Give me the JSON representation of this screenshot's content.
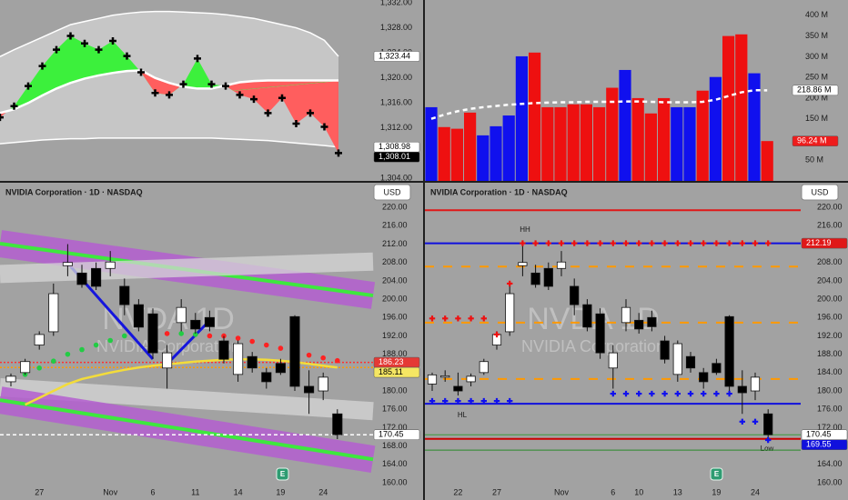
{
  "chart_data": [
    {
      "type": "oscillator",
      "values": [
        1313.7,
        1315.5,
        1318.7,
        1321.9,
        1324.5,
        1326.7,
        1325.5,
        1324.5,
        1325.9,
        1323.5,
        1320.9,
        1317.6,
        1317.3,
        1319,
        1323.1,
        1319,
        1318.7,
        1317.3,
        1316.6,
        1314.4,
        1316.8,
        1312.7,
        1314.4,
        1312.2,
        1308.01
      ],
      "basis": [
        1314.4,
        1315,
        1316,
        1317.2,
        1318.3,
        1319.2,
        1319.9,
        1320.4,
        1320.8,
        1321.1,
        1321.2,
        1320,
        1319.2,
        1318.6,
        1318.3,
        1318.3,
        1318.8,
        1319.3,
        1319.5,
        1319.6,
        1319.6,
        1319.6,
        1319.6,
        1319.6,
        1319.6
      ],
      "upper": [
        1323.4,
        1324.5,
        1325.5,
        1326.5,
        1327.5,
        1328.5,
        1329,
        1329.5,
        1330,
        1330.3,
        1330.5,
        1330.6,
        1330.6,
        1330.5,
        1330.4,
        1330.3,
        1330.1,
        1329.8,
        1329.5,
        1329,
        1328.5,
        1328,
        1327.2,
        1326,
        1323.44
      ],
      "lower": [
        1309.5,
        1309.7,
        1309.9,
        1310.1,
        1310.2,
        1310.3,
        1310.3,
        1310.4,
        1310.4,
        1310.4,
        1310.4,
        1310.4,
        1310.4,
        1310.4,
        1310.4,
        1310.4,
        1310.3,
        1310.2,
        1310.1,
        1310,
        1309.8,
        1309.6,
        1309.4,
        1309.2,
        1308.98
      ],
      "band_color": "#c6c6c6",
      "line_color": "#ffffff",
      "up_color": "#3cf03c",
      "down_color": "#ff5e5e",
      "marker_color": "#000000",
      "ylim": [
        1303.57,
        1332.43
      ],
      "yticks": [
        {
          "value": 1304,
          "label": "1,304.00"
        },
        {
          "value": 1308,
          "label": "1,308.00"
        },
        {
          "value": 1312,
          "label": "1,312.00"
        },
        {
          "value": 1316,
          "label": "1,316.00"
        },
        {
          "value": 1320,
          "label": "1,320.00"
        },
        {
          "value": 1324,
          "label": "1,324.00"
        },
        {
          "value": 1328,
          "label": "1,328.00"
        },
        {
          "value": 1332,
          "label": "1,332.00"
        }
      ],
      "price_labels": [
        {
          "value": 1323.44,
          "label": "1,323.44",
          "color": "#ffffff",
          "text_color": "#000000"
        },
        {
          "value": 1308.98,
          "label": "1,308.98",
          "color": "#ffffff",
          "text_color": "#000000"
        },
        {
          "value": 1308.01,
          "label": "1,308.01",
          "color": "#000000",
          "text_color": "#ffffff"
        }
      ]
    },
    {
      "type": "bar",
      "values": [
        178,
        130,
        126,
        165,
        110,
        132,
        158,
        301,
        310,
        178,
        178,
        185,
        185,
        178,
        225,
        268,
        200,
        163,
        200,
        178,
        178,
        218,
        251,
        350,
        354,
        260,
        96.24
      ],
      "colors": [
        "#1010ee",
        "#ee1010",
        "#ee1010",
        "#ee1010",
        "#1010ee",
        "#1010ee",
        "#1010ee",
        "#1010ee",
        "#ee1010",
        "#ee1010",
        "#ee1010",
        "#ee1010",
        "#ee1010",
        "#ee1010",
        "#ee1010",
        "#1010ee",
        "#ee1010",
        "#ee1010",
        "#ee1010",
        "#1010ee",
        "#1010ee",
        "#ee1010",
        "#1010ee",
        "#ee1010",
        "#ee1010",
        "#1010ee",
        "#ee1010"
      ],
      "series": [
        {
          "color": "#ffffff",
          "dash": true,
          "values": [
            150,
            160,
            168,
            174,
            178,
            181,
            184,
            186,
            188,
            189,
            190,
            190,
            191,
            191,
            191,
            192,
            192,
            191,
            190,
            190,
            190,
            191,
            196,
            205,
            214,
            219,
            218.86
          ]
        }
      ],
      "ylim": [
        0,
        437
      ],
      "yticks": [
        {
          "value": 50,
          "label": "50 M"
        },
        {
          "value": 100,
          "label": "100 M"
        },
        {
          "value": 150,
          "label": "150 M"
        },
        {
          "value": 200,
          "label": "200 M"
        },
        {
          "value": 250,
          "label": "250 M"
        },
        {
          "value": 300,
          "label": "300 M"
        },
        {
          "value": 350,
          "label": "350 M"
        },
        {
          "value": 400,
          "label": "400 M"
        }
      ],
      "price_labels": [
        {
          "value": 218.86,
          "label": "218.86 M",
          "color": "#ffffff",
          "text_color": "#000000"
        },
        {
          "value": 96.24,
          "label": "96.24 M",
          "color": "#ee1c1c",
          "text_color": "#ffffff"
        }
      ]
    },
    {
      "type": "candlestick",
      "title": "NVIDIA Corporation · 1D · NASDAQ",
      "currency": "USD",
      "watermark": "NVDA 1D",
      "watermark_sub": "NVIDIA Corporation",
      "earnings": "E",
      "categories": [
        null,
        null,
        "27",
        null,
        null,
        null,
        null,
        "Nov",
        null,
        null,
        "6",
        null,
        null,
        "11",
        null,
        null,
        "14",
        null,
        null,
        "19",
        null,
        null,
        "24",
        null
      ],
      "open": [
        182,
        184,
        190,
        192.9,
        207.3,
        205.7,
        206.7,
        206.7,
        202.8,
        198.8,
        196.8,
        185,
        194.9,
        195.4,
        196,
        190.9,
        183.6,
        187.5,
        184,
        186,
        196.2,
        181,
        180,
        175
      ],
      "high": [
        183.8,
        187,
        193,
        203.4,
        212,
        207.5,
        208,
        210.5,
        204.5,
        200,
        198,
        190,
        200,
        197,
        197.5,
        192,
        191,
        188.5,
        185,
        187,
        196.5,
        184.5,
        184,
        176
      ],
      "low": [
        181,
        183.5,
        189,
        192,
        205,
        202.5,
        202,
        205,
        196.5,
        193,
        187,
        180.5,
        193,
        192.5,
        193,
        186,
        182,
        184,
        180.5,
        183.5,
        180,
        175,
        178,
        169.5
      ],
      "close": [
        183.2,
        186.4,
        192.3,
        201.2,
        208,
        203.2,
        202.8,
        208.1,
        198.8,
        193.9,
        188.3,
        188.3,
        198.2,
        193.5,
        194,
        186.9,
        190.3,
        185,
        182,
        184,
        181,
        179.6,
        183,
        170.45
      ],
      "up_color": "#ffffff",
      "down_color": "#000000",
      "channels": [
        {
          "color": "#b45ed0",
          "width": 30,
          "opacity": 0.85,
          "values": [
            212.1,
            200.8
          ]
        },
        {
          "color": "#3ee83e",
          "width": 4,
          "opacity": 1,
          "values": [
            212.1,
            200.8
          ]
        },
        {
          "color": "#d6d6d6",
          "width": 20,
          "opacity": 0.75,
          "values": [
            205.5,
            208.2
          ]
        },
        {
          "color": "#d6d6d6",
          "width": 20,
          "opacity": 0.75,
          "values": [
            180.8,
            175.6
          ]
        },
        {
          "color": "#b45ed0",
          "width": 30,
          "opacity": 0.85,
          "values": [
            178,
            165.1
          ]
        },
        {
          "color": "#3ee83e",
          "width": 4,
          "opacity": 1,
          "values": [
            178,
            165.1
          ]
        }
      ],
      "series": [
        {
          "color": "#f3dc3a",
          "values": [
            null,
            177,
            178.5,
            180,
            181.5,
            182.6,
            183.3,
            184,
            184.6,
            185.1,
            185.5,
            185.8,
            186.1,
            186.4,
            186.6,
            186.8,
            186.9,
            186.9,
            186.8,
            186.6,
            186.3,
            185.9,
            185.5,
            185.11
          ]
        }
      ],
      "dots": {
        "values": [
          null,
          183.6,
          185,
          186.5,
          188,
          189,
          190,
          191,
          192,
          null,
          192,
          192.5,
          192.5,
          192.3,
          192,
          192,
          191.5,
          190.8,
          190,
          189.3,
          188.5,
          187.8,
          187.2,
          186.6
        ],
        "colors": [
          null,
          "#22cc44",
          "#22cc44",
          "#22cc44",
          "#22cc44",
          "#22cc44",
          "#22cc44",
          "#22cc44",
          "#22cc44",
          null,
          "#ff2222",
          "#ff2222",
          "#22cc44",
          "#22cc44",
          "#ff2222",
          "#ff2222",
          "#ff2222",
          "#ff2222",
          "#ff2222",
          "#ff2222",
          "#ff2222",
          "#ff2222",
          "#ff2222",
          "#ff2222"
        ]
      },
      "ylim": [
        159,
        223.6
      ],
      "yticks": [
        {
          "value": 160,
          "label": "160.00"
        },
        {
          "value": 164,
          "label": "164.00"
        },
        {
          "value": 168,
          "label": "168.00"
        },
        {
          "value": 172,
          "label": "172.00"
        },
        {
          "value": 176,
          "label": "176.00"
        },
        {
          "value": 180,
          "label": "180.00"
        },
        {
          "value": 184,
          "label": "184.00"
        },
        {
          "value": 188,
          "label": "188.00"
        },
        {
          "value": 192,
          "label": "192.00"
        },
        {
          "value": 196,
          "label": "196.00"
        },
        {
          "value": 200,
          "label": "200.00"
        },
        {
          "value": 204,
          "label": "204.00"
        },
        {
          "value": 208,
          "label": "208.00"
        },
        {
          "value": 212,
          "label": "212.00"
        },
        {
          "value": 216,
          "label": "216.00"
        },
        {
          "value": 220,
          "label": "220.00"
        }
      ],
      "price_labels": [
        {
          "value": 186.23,
          "color": "#e53935",
          "text_color": "#ffffff",
          "line_color": "#ff3030",
          "dash": "2 2"
        },
        {
          "value": 185.11,
          "color": "#f5e663",
          "text_color": "#000000",
          "line_color": "#ff9a00",
          "dash": "2 2"
        },
        {
          "value": 170.45,
          "color": "#ffffff",
          "text_color": "#000000",
          "line_color": "#ffffff",
          "dash": "4 3"
        }
      ]
    },
    {
      "type": "candlestick",
      "title": "NVIDIA Corporation · 1D · NASDAQ",
      "currency": "USD",
      "watermark": "NVDA 1D",
      "watermark_sub": "NVIDIA Corporation",
      "earnings": "E",
      "annotations": [
        "HH",
        "HL",
        "Low"
      ],
      "categories": [
        null,
        null,
        "22",
        null,
        null,
        "27",
        null,
        null,
        null,
        null,
        "Nov",
        null,
        null,
        null,
        "6",
        null,
        "10",
        null,
        null,
        "13",
        null,
        null,
        "19",
        null,
        null,
        "24",
        null
      ],
      "open": [
        181.5,
        183,
        181,
        182,
        184,
        190,
        192.9,
        207.3,
        205.7,
        206.7,
        206.7,
        202.8,
        198.8,
        196.8,
        185,
        194.9,
        195.4,
        196,
        190.9,
        183.6,
        187.5,
        184,
        186,
        196.2,
        181,
        180,
        175
      ],
      "high": [
        184,
        184.5,
        184,
        183.8,
        187,
        193,
        203.4,
        212,
        207.5,
        208,
        210.5,
        204.5,
        200,
        198,
        190,
        200,
        197,
        197.5,
        192,
        191,
        188.5,
        185,
        187,
        196.5,
        184.5,
        184,
        176
      ],
      "low": [
        180,
        182,
        179,
        181,
        183.5,
        189,
        192,
        205,
        202.5,
        202,
        205,
        196.5,
        193,
        187,
        180.5,
        193,
        192.5,
        193,
        186,
        182,
        184,
        180.5,
        183.5,
        180,
        175,
        178,
        169.5
      ],
      "close": [
        183.5,
        183.3,
        180,
        183.2,
        186.4,
        192.3,
        201.2,
        208,
        203.2,
        202.8,
        208.1,
        198.8,
        193.9,
        188.3,
        188.3,
        198.2,
        193.5,
        194,
        186.9,
        190.3,
        185,
        182,
        184,
        181,
        179.6,
        183,
        170.45
      ],
      "up_color": "#ffffff",
      "down_color": "#000000",
      "levels": [
        {
          "value": 219.4,
          "color": "#e01818",
          "width": 2
        },
        {
          "value": 207.1,
          "color": "#ff9900",
          "width": 2,
          "dash": "10 10"
        },
        {
          "value": 194.9,
          "color": "#ff9900",
          "width": 2,
          "dash": "10 10"
        },
        {
          "value": 182.6,
          "color": "#ff9900",
          "width": 2,
          "dash": "10 10"
        },
        {
          "value": 177.2,
          "color": "#1010dd",
          "width": 2
        },
        {
          "value": 167.1,
          "color": "#2a8a2a",
          "width": 1
        }
      ],
      "markers": [
        {
          "color": "#ee1010",
          "values": [
            195.8,
            195.8,
            195.8,
            195.8,
            195.8,
            192.3,
            203.4,
            212.19,
            212.19,
            212.19,
            212.19,
            212.19,
            212.19,
            212.19,
            212.19,
            212.19,
            212.19,
            212.19,
            212.19,
            212.19,
            212.19,
            212.19,
            212.19,
            212.19,
            212.19,
            212.19,
            212.19
          ]
        },
        {
          "color": "#1010ee",
          "values": [
            177.8,
            177.8,
            177.8,
            177.8,
            177.8,
            177.8,
            177.8,
            null,
            null,
            null,
            null,
            null,
            null,
            null,
            179.4,
            179.4,
            179.4,
            179.4,
            179.4,
            179.4,
            179.4,
            179.4,
            179.4,
            179.4,
            173.3,
            173.3,
            169.3
          ]
        }
      ],
      "ylim": [
        159,
        223.6
      ],
      "yticks": [
        {
          "value": 160,
          "label": "160.00"
        },
        {
          "value": 164,
          "label": "164.00"
        },
        {
          "value": 168,
          "label": "168.00"
        },
        {
          "value": 172,
          "label": "172.00"
        },
        {
          "value": 176,
          "label": "176.00"
        },
        {
          "value": 180,
          "label": "180.00"
        },
        {
          "value": 184,
          "label": "184.00"
        },
        {
          "value": 188,
          "label": "188.00"
        },
        {
          "value": 192,
          "label": "192.00"
        },
        {
          "value": 196,
          "label": "196.00"
        },
        {
          "value": 200,
          "label": "200.00"
        },
        {
          "value": 204,
          "label": "204.00"
        },
        {
          "value": 208,
          "label": "208.00"
        },
        {
          "value": 212,
          "label": "212.00"
        },
        {
          "value": 216,
          "label": "216.00"
        },
        {
          "value": 220,
          "label": "220.00"
        }
      ],
      "price_labels": [
        {
          "value": 212.19,
          "color": "#e01818",
          "text_color": "#ffffff",
          "line_color": "#1010dd",
          "width": 2
        },
        {
          "value": 170.45,
          "color": "#ffffff",
          "text_color": "#000000",
          "line_color": "#3a9a3a",
          "width": 1
        },
        {
          "value": 169.55,
          "color": "#1010dd",
          "text_color": "#ffffff",
          "line_color": "#cc0000",
          "width": 2
        }
      ]
    }
  ]
}
